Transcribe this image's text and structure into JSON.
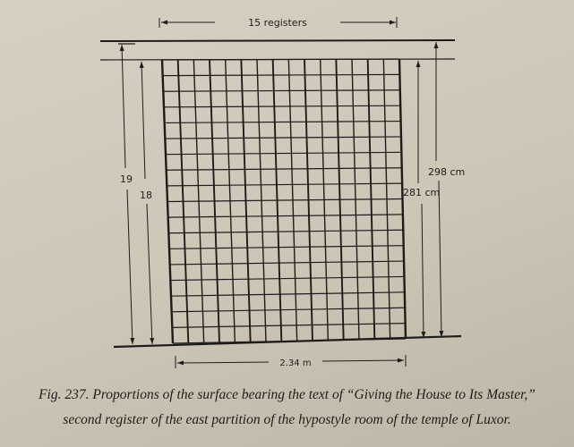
{
  "diagram": {
    "top_label": "15 registers",
    "bottom_label": "2.34 m",
    "left_outer_label": "19",
    "left_inner_label": "18",
    "right_outer_label": "298 cm",
    "right_inner_label": "281 cm",
    "grid_columns": 15,
    "grid_rows": 18
  },
  "caption": {
    "line1": "Fig. 237. Proportions of the surface bearing the text of “Giving the House to Its Master,”",
    "line2": "second register of the east partition of the hypostyle room of the temple of Luxor."
  },
  "colors": {
    "ink": "#1e1c1a",
    "paper": "#d0c9ba"
  }
}
